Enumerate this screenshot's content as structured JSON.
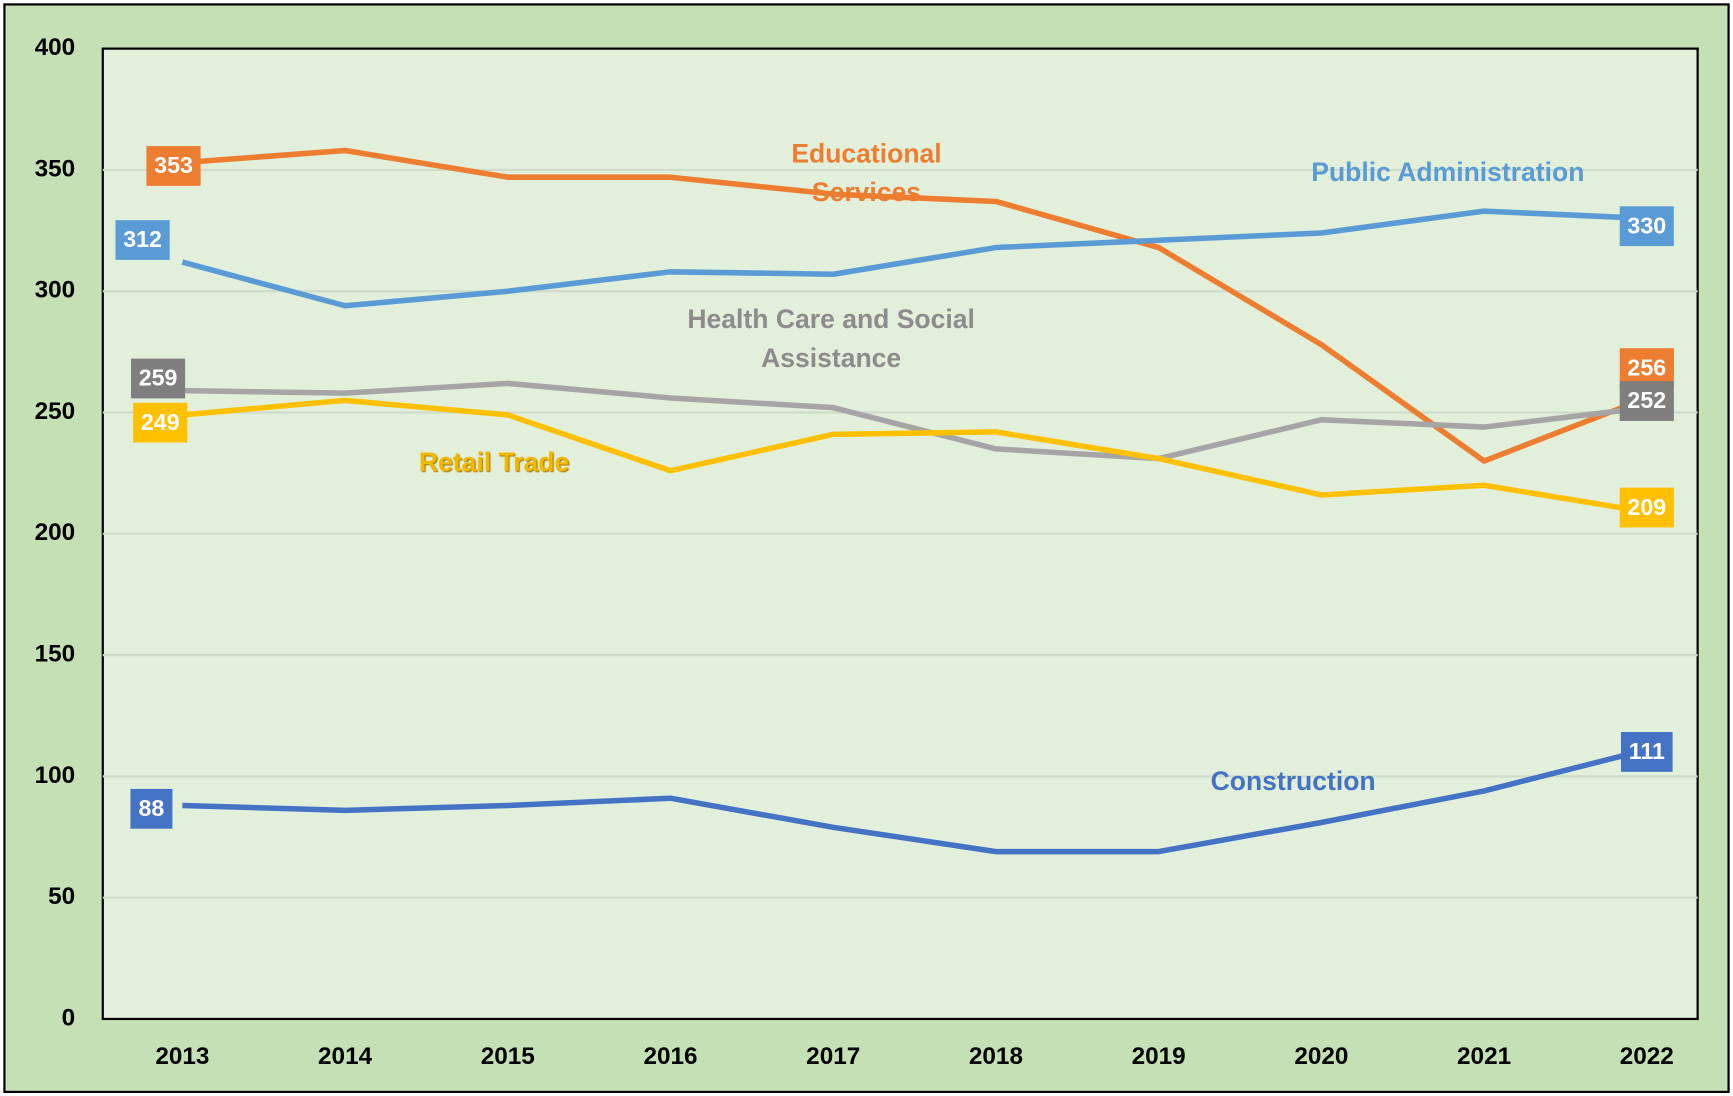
{
  "chart_data": {
    "type": "line",
    "categories": [
      "2013",
      "2014",
      "2015",
      "2016",
      "2017",
      "2018",
      "2019",
      "2020",
      "2021",
      "2022"
    ],
    "series": [
      {
        "name": "Educational Services",
        "color": "#ED7D31",
        "values": [
          353,
          358,
          347,
          347,
          340,
          337,
          318,
          278,
          230,
          256
        ]
      },
      {
        "name": "Public Administration",
        "color": "#5B9BD5",
        "values": [
          312,
          294,
          300,
          308,
          307,
          318,
          321,
          324,
          333,
          330
        ]
      },
      {
        "name": "Health Care and Social Assistance",
        "color": "#A5A5A5",
        "values": [
          259,
          258,
          262,
          256,
          252,
          235,
          231,
          247,
          244,
          252
        ]
      },
      {
        "name": "Retail Trade",
        "color": "#FFC000",
        "values": [
          249,
          255,
          249,
          226,
          241,
          242,
          231,
          216,
          220,
          209
        ]
      },
      {
        "name": "Construction",
        "color": "#4472C4",
        "values": [
          88,
          86,
          88,
          91,
          79,
          69,
          69,
          81,
          94,
          111
        ]
      }
    ],
    "ylim": [
      0,
      400
    ],
    "yticks": [
      0,
      50,
      100,
      150,
      200,
      250,
      300,
      350,
      400
    ],
    "grid": true
  }
}
